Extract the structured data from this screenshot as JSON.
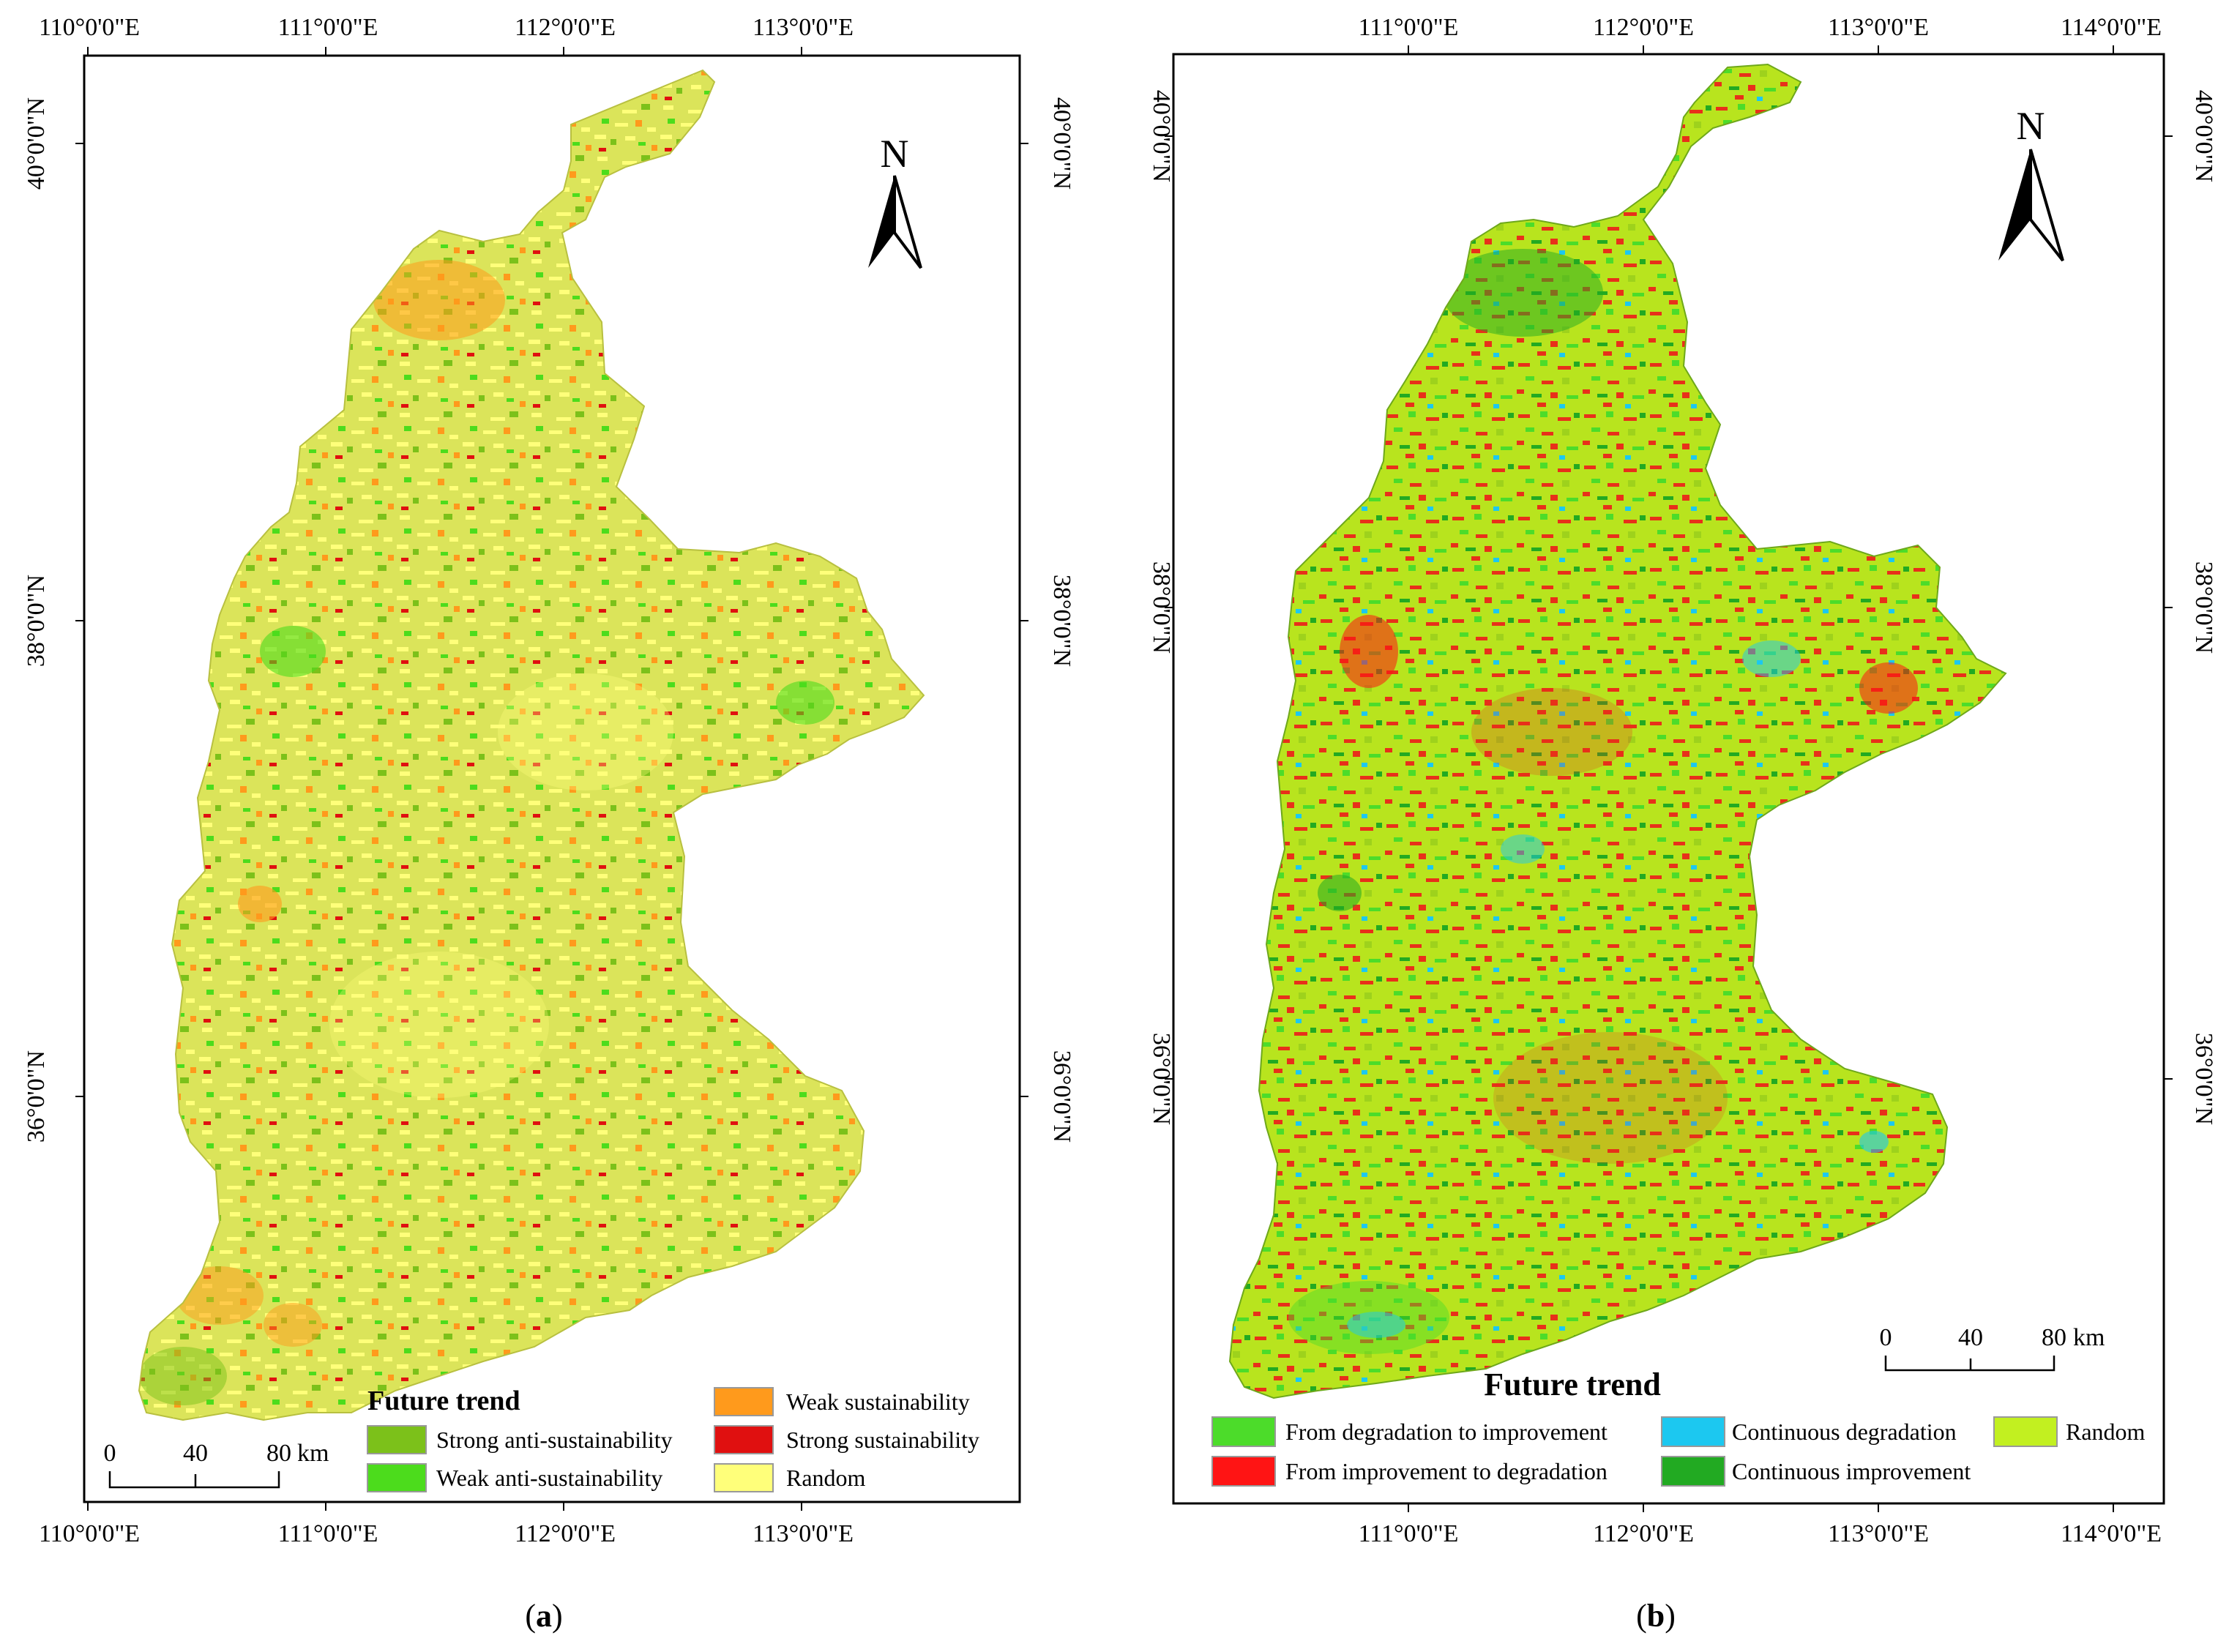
{
  "panel_a": {
    "label_open": "(",
    "label_letter": "a",
    "label_close": ")",
    "lon_ticks": [
      "110°0'0\"E",
      "111°0'0\"E",
      "112°0'0\"E",
      "113°0'0\"E"
    ],
    "lat_ticks": [
      "40°0'0\"N",
      "38°0'0\"N",
      "36°0'0\"N"
    ],
    "north": "N",
    "scale": {
      "ticks": [
        "0",
        "40",
        "80"
      ],
      "unit": "km"
    },
    "legend": {
      "title": "Future trend",
      "items": [
        {
          "label": "Strong anti-sustainability",
          "color": "#7cc11a"
        },
        {
          "label": "Weak anti-sustainability",
          "color": "#4cdc1c"
        },
        {
          "label": "Random",
          "color": "#ffff7a"
        },
        {
          "label": "Weak sustainability",
          "color": "#ff9a1c"
        },
        {
          "label": "Strong sustainability",
          "color": "#e01010"
        }
      ]
    },
    "base_color": "#e2e85a"
  },
  "panel_b": {
    "label_open": "(",
    "label_letter": "b",
    "label_close": ")",
    "lon_ticks": [
      "111°0'0\"E",
      "112°0'0\"E",
      "113°0'0\"E",
      "114°0'0\"E"
    ],
    "lat_ticks": [
      "40°0'0\"N",
      "38°0'0\"N",
      "36°0'0\"N"
    ],
    "north": "N",
    "scale": {
      "ticks": [
        "0",
        "40",
        "80"
      ],
      "unit": "km"
    },
    "legend": {
      "title": "Future trend",
      "items": [
        {
          "label": "From degradation to improvement",
          "color": "#4cdc2a"
        },
        {
          "label": "From improvement to degradation",
          "color": "#ff1414"
        },
        {
          "label": "Continuous degradation",
          "color": "#1cc8f0"
        },
        {
          "label": "Continuous improvement",
          "color": "#22aa22"
        },
        {
          "label": "Random",
          "color": "#c2f020"
        }
      ]
    },
    "base_color": "#b4e01e"
  }
}
